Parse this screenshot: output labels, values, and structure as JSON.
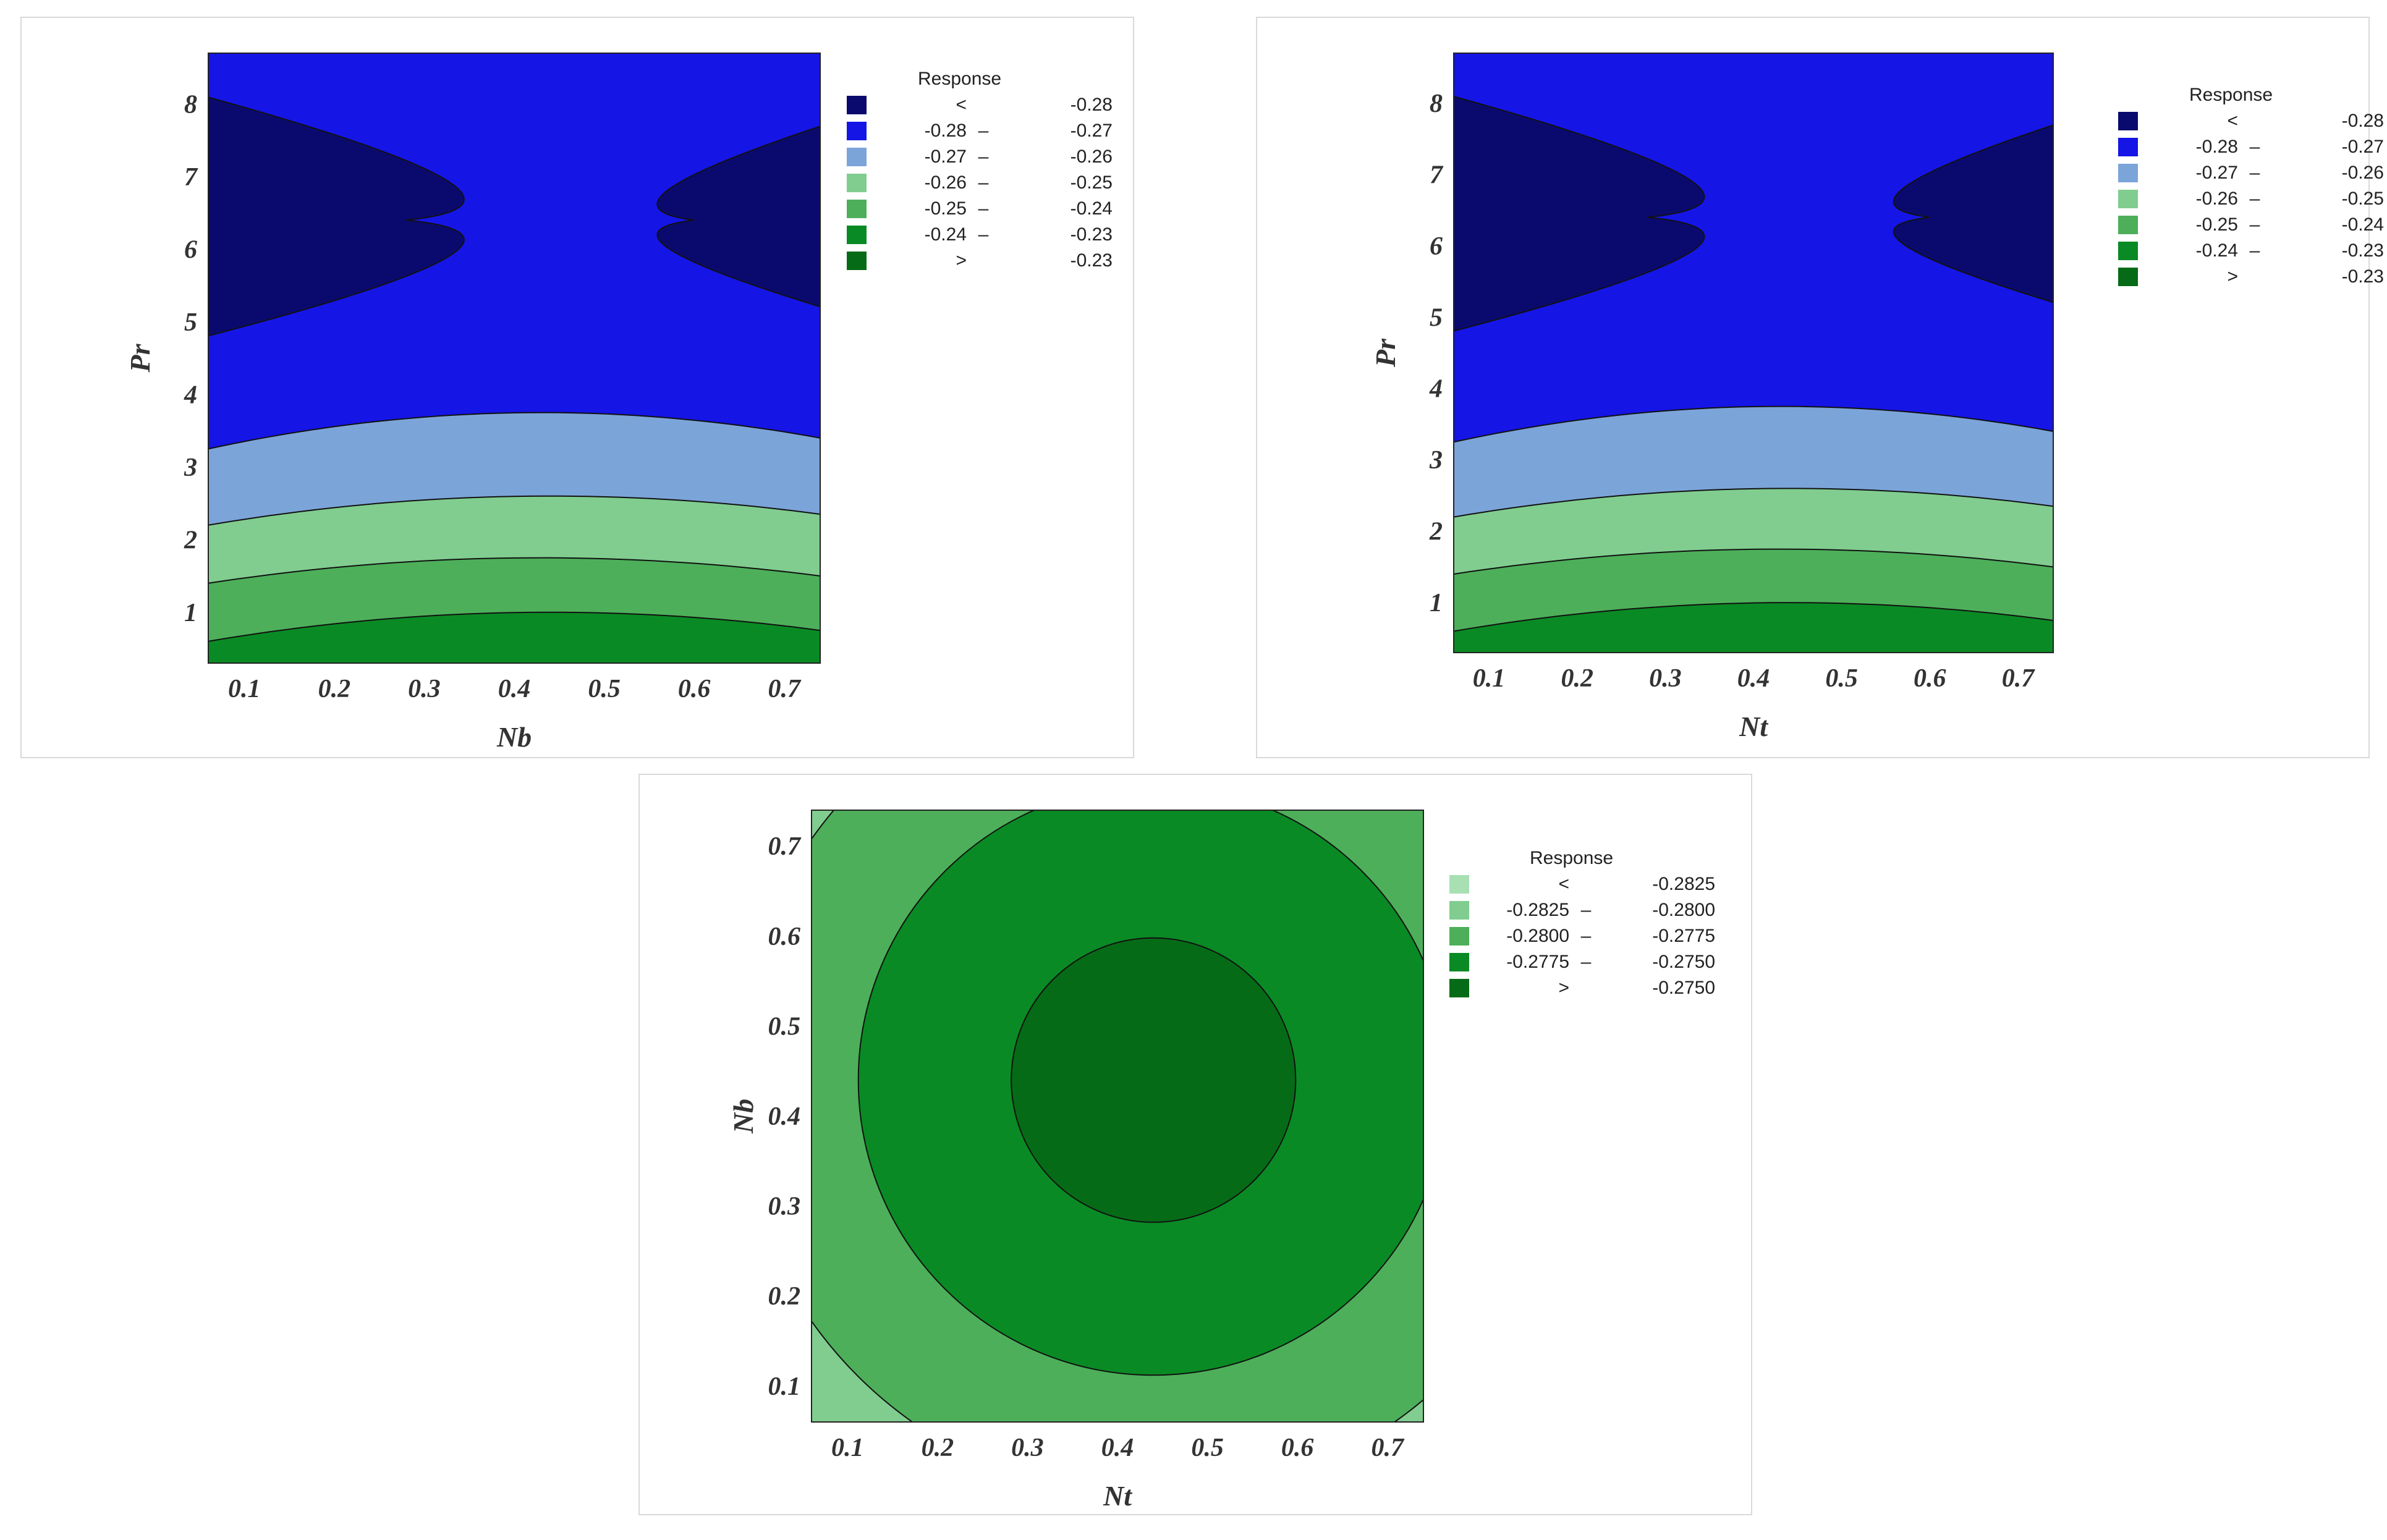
{
  "chart_data": [
    {
      "type": "contour",
      "xlabel": "Nb",
      "ylabel": "Pr",
      "xlim": [
        0.06,
        0.74
      ],
      "ylim": [
        0.3,
        8.7
      ],
      "x_ticks": [
        "0.1",
        "0.2",
        "0.3",
        "0.4",
        "0.5",
        "0.6",
        "0.7"
      ],
      "y_ticks": [
        "1",
        "2",
        "3",
        "4",
        "5",
        "6",
        "7",
        "8"
      ],
      "legend_title": "Response",
      "legend": [
        {
          "low": "<",
          "high": "-0.28",
          "color": "#0a0a6e"
        },
        {
          "low": "-0.28",
          "high": "-0.27",
          "color": "#1515e6"
        },
        {
          "low": "-0.27",
          "high": "-0.26",
          "color": "#7ba4d9"
        },
        {
          "low": "-0.26",
          "high": "-0.25",
          "color": "#80cd8f"
        },
        {
          "low": "-0.25",
          "high": "-0.24",
          "color": "#4daf5a"
        },
        {
          "low": "-0.24",
          "high": "-0.23",
          "color": "#0a8a24"
        },
        {
          "low": ">",
          "high": "-0.23",
          "color": "#066b16"
        }
      ],
      "band_boundaries": [
        {
          "level": "-0.23",
          "at_x": [
            0.06,
            0.43,
            0.74
          ],
          "pr": [
            0.3,
            0.3,
            0.3
          ]
        },
        {
          "level": "-0.24",
          "at_x": [
            0.06,
            0.43,
            0.74
          ],
          "pr": [
            0.6,
            1.0,
            0.75
          ]
        },
        {
          "level": "-0.25",
          "at_x": [
            0.06,
            0.43,
            0.74
          ],
          "pr": [
            1.4,
            1.75,
            1.5
          ]
        },
        {
          "level": "-0.26",
          "at_x": [
            0.06,
            0.43,
            0.74
          ],
          "pr": [
            2.2,
            2.6,
            2.35
          ]
        },
        {
          "level": "-0.27",
          "at_x": [
            0.06,
            0.43,
            0.74
          ],
          "pr": [
            3.25,
            3.75,
            3.4
          ]
        }
      ],
      "lobes_below_-0.28": [
        {
          "side": "left",
          "pr_range": [
            4.8,
            8.1
          ],
          "tip_x": 0.28,
          "tip_pr": 6.4
        },
        {
          "side": "right",
          "pr_range": [
            5.2,
            7.7
          ],
          "tip_x": 0.6,
          "tip_pr": 6.4
        }
      ]
    },
    {
      "type": "contour",
      "xlabel": "Nt",
      "ylabel": "Pr",
      "xlim": [
        0.06,
        0.74
      ],
      "ylim": [
        0.3,
        8.7
      ],
      "x_ticks": [
        "0.1",
        "0.2",
        "0.3",
        "0.4",
        "0.5",
        "0.6",
        "0.7"
      ],
      "y_ticks": [
        "1",
        "2",
        "3",
        "4",
        "5",
        "6",
        "7",
        "8"
      ],
      "legend_title": "Response",
      "legend": [
        {
          "low": "<",
          "high": "-0.28",
          "color": "#0a0a6e"
        },
        {
          "low": "-0.28",
          "high": "-0.27",
          "color": "#1515e6"
        },
        {
          "low": "-0.27",
          "high": "-0.26",
          "color": "#7ba4d9"
        },
        {
          "low": "-0.26",
          "high": "-0.25",
          "color": "#80cd8f"
        },
        {
          "low": "-0.25",
          "high": "-0.24",
          "color": "#4daf5a"
        },
        {
          "low": "-0.24",
          "high": "-0.23",
          "color": "#0a8a24"
        },
        {
          "low": ">",
          "high": "-0.23",
          "color": "#066b16"
        }
      ],
      "band_boundaries": [
        {
          "level": "-0.24",
          "at_x": [
            0.06,
            0.43,
            0.74
          ],
          "pr": [
            0.6,
            1.0,
            0.75
          ]
        },
        {
          "level": "-0.25",
          "at_x": [
            0.06,
            0.43,
            0.74
          ],
          "pr": [
            1.4,
            1.75,
            1.5
          ]
        },
        {
          "level": "-0.26",
          "at_x": [
            0.06,
            0.43,
            0.74
          ],
          "pr": [
            2.2,
            2.6,
            2.35
          ]
        },
        {
          "level": "-0.27",
          "at_x": [
            0.06,
            0.43,
            0.74
          ],
          "pr": [
            3.25,
            3.75,
            3.4
          ]
        }
      ],
      "lobes_below_-0.28": [
        {
          "side": "left",
          "pr_range": [
            4.8,
            8.1
          ],
          "tip_x": 0.28,
          "tip_pr": 6.4
        },
        {
          "side": "right",
          "pr_range": [
            5.2,
            7.7
          ],
          "tip_x": 0.6,
          "tip_pr": 6.4
        }
      ]
    },
    {
      "type": "contour",
      "xlabel": "Nt",
      "ylabel": "Nb",
      "xlim": [
        0.06,
        0.74
      ],
      "ylim": [
        0.06,
        0.74
      ],
      "x_ticks": [
        "0.1",
        "0.2",
        "0.3",
        "0.4",
        "0.5",
        "0.6",
        "0.7"
      ],
      "y_ticks": [
        "0.1",
        "0.2",
        "0.3",
        "0.4",
        "0.5",
        "0.6",
        "0.7"
      ],
      "legend_title": "Response",
      "legend": [
        {
          "low": "<",
          "high": "-0.2825",
          "color": "#a8e0b4"
        },
        {
          "low": "-0.2825",
          "high": "-0.2800",
          "color": "#80cd8f"
        },
        {
          "low": "-0.2800",
          "high": "-0.2775",
          "color": "#4daf5a"
        },
        {
          "low": "-0.2775",
          "high": "-0.2750",
          "color": "#0a8a24"
        },
        {
          "low": ">",
          "high": "-0.2750",
          "color": "#066b16"
        }
      ],
      "center": [
        0.44,
        0.44
      ],
      "circle_radii": [
        {
          "level": "-0.2750",
          "radius": 0.158
        },
        {
          "level": "-0.2775",
          "radius": 0.328
        },
        {
          "level": "-0.2800",
          "radius": 0.465
        }
      ]
    }
  ]
}
